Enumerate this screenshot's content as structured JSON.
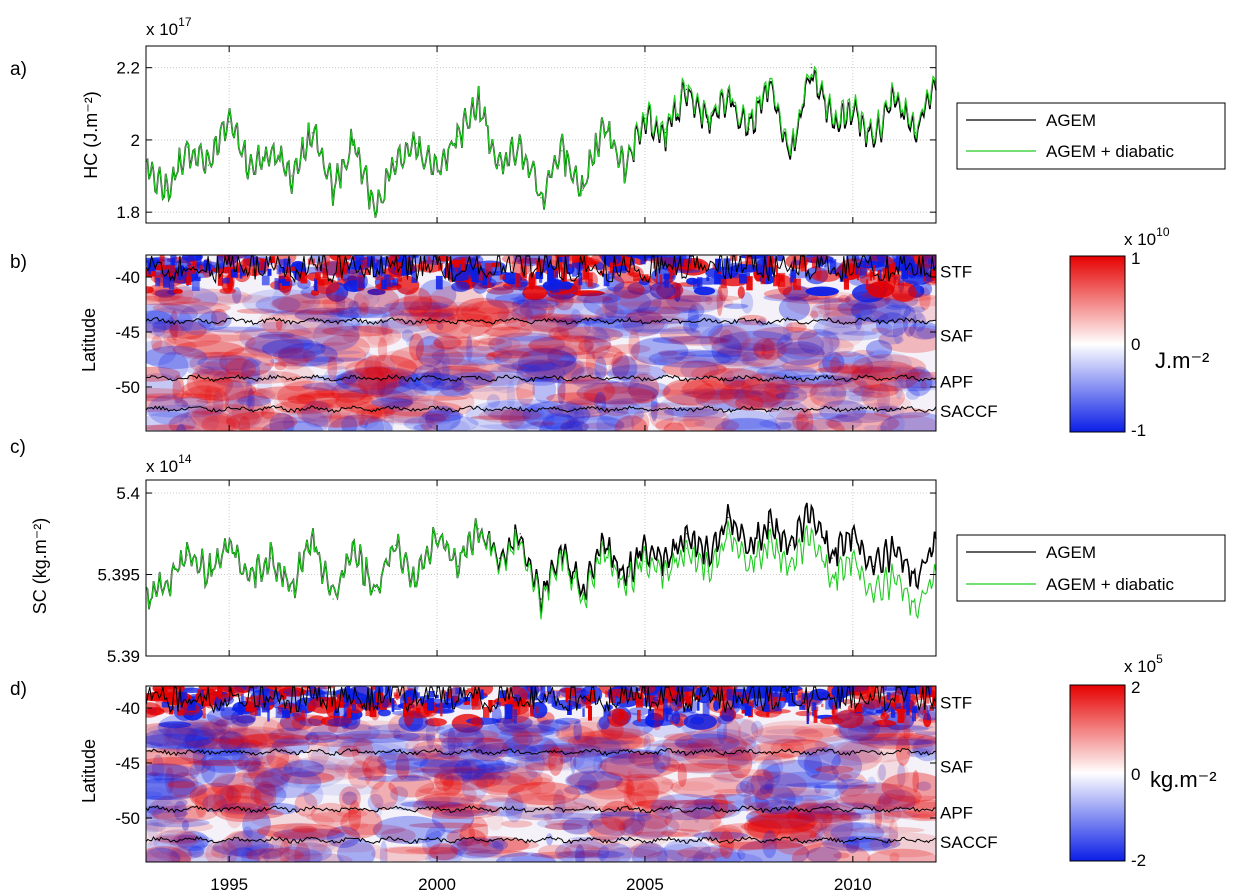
{
  "chart_data": [
    {
      "type": "line",
      "panel_label": "a)",
      "ylabel": "HC (J.m⁻²)",
      "multiplier": "x 10",
      "multiplier_exp": "17",
      "xlim": [
        1993,
        2012
      ],
      "ylim": [
        1.77,
        2.26
      ],
      "yticks": [
        1.8,
        2.0,
        2.2
      ],
      "ytick_labels": [
        "1.8",
        "2",
        "2.2"
      ],
      "grid": true,
      "legend_position": "right",
      "legend": [
        "AGEM",
        "AGEM + diabatic"
      ],
      "series": [
        {
          "name": "AGEM",
          "color": "#000000",
          "values": [
            [
              1993,
              1.92
            ],
            [
              1993.5,
              1.86
            ],
            [
              1994,
              1.98
            ],
            [
              1994.5,
              1.93
            ],
            [
              1995,
              2.05
            ],
            [
              1995.5,
              1.92
            ],
            [
              1996,
              1.97
            ],
            [
              1996.5,
              1.9
            ],
            [
              1997,
              2.02
            ],
            [
              1997.5,
              1.86
            ],
            [
              1998,
              2.0
            ],
            [
              1998.5,
              1.8
            ],
            [
              1999,
              1.94
            ],
            [
              1999.5,
              1.99
            ],
            [
              2000,
              1.92
            ],
            [
              2000.5,
              2.01
            ],
            [
              2001,
              2.1
            ],
            [
              2001.5,
              1.93
            ],
            [
              2002,
              1.99
            ],
            [
              2002.5,
              1.84
            ],
            [
              2003,
              1.97
            ],
            [
              2003.5,
              1.86
            ],
            [
              2004,
              2.04
            ],
            [
              2004.5,
              1.92
            ],
            [
              2005,
              2.06
            ],
            [
              2005.5,
              2.02
            ],
            [
              2006,
              2.14
            ],
            [
              2006.5,
              2.05
            ],
            [
              2007,
              2.12
            ],
            [
              2007.5,
              2.03
            ],
            [
              2008,
              2.16
            ],
            [
              2008.5,
              1.95
            ],
            [
              2009,
              2.2
            ],
            [
              2009.5,
              2.05
            ],
            [
              2010,
              2.08
            ],
            [
              2010.5,
              2.0
            ],
            [
              2011,
              2.12
            ],
            [
              2011.5,
              2.02
            ],
            [
              2012,
              2.16
            ]
          ]
        },
        {
          "name": "AGEM + diabatic",
          "color": "#22cc22",
          "values": [
            [
              1993,
              1.92
            ],
            [
              1993.5,
              1.86
            ],
            [
              1994,
              1.98
            ],
            [
              1994.5,
              1.93
            ],
            [
              1995,
              2.05
            ],
            [
              1995.5,
              1.92
            ],
            [
              1996,
              1.97
            ],
            [
              1996.5,
              1.9
            ],
            [
              1997,
              2.02
            ],
            [
              1997.5,
              1.86
            ],
            [
              1998,
              2.0
            ],
            [
              1998.5,
              1.8
            ],
            [
              1999,
              1.94
            ],
            [
              1999.5,
              1.99
            ],
            [
              2000,
              1.92
            ],
            [
              2000.5,
              2.01
            ],
            [
              2001,
              2.1
            ],
            [
              2001.5,
              1.93
            ],
            [
              2002,
              1.99
            ],
            [
              2002.5,
              1.84
            ],
            [
              2003,
              1.97
            ],
            [
              2003.5,
              1.86
            ],
            [
              2004,
              2.04
            ],
            [
              2004.5,
              1.92
            ],
            [
              2005,
              2.07
            ],
            [
              2005.5,
              2.03
            ],
            [
              2006,
              2.15
            ],
            [
              2006.5,
              2.06
            ],
            [
              2007,
              2.13
            ],
            [
              2007.5,
              2.04
            ],
            [
              2008,
              2.17
            ],
            [
              2008.5,
              1.96
            ],
            [
              2009,
              2.21
            ],
            [
              2009.5,
              2.06
            ],
            [
              2010,
              2.09
            ],
            [
              2010.5,
              2.01
            ],
            [
              2011,
              2.13
            ],
            [
              2011.5,
              2.03
            ],
            [
              2012,
              2.17
            ]
          ]
        }
      ]
    },
    {
      "type": "heatmap",
      "panel_label": "b)",
      "ylabel": "Latitude",
      "xlim": [
        1993,
        2012
      ],
      "ylim": [
        -54,
        -38
      ],
      "yticks": [
        -40,
        -45,
        -50
      ],
      "ytick_labels": [
        "-40",
        "-45",
        "-50"
      ],
      "colorbar": {
        "multiplier": "x 10",
        "multiplier_exp": "10",
        "ticks": [
          "1",
          "0",
          "-1"
        ],
        "label": "J.m⁻²",
        "range": [
          -1,
          1
        ]
      },
      "fronts": [
        {
          "name": "STF",
          "lat": -39.5
        },
        {
          "name": "SAF",
          "lat": -44.0
        },
        {
          "name": "APF",
          "lat": -49.2
        },
        {
          "name": "SACCF",
          "lat": -52.0
        }
      ],
      "front_tick_lat": {
        "STF": -39.5,
        "SAF": -45.3,
        "APF": -49.5,
        "SACCF": -52.2
      }
    },
    {
      "type": "line",
      "panel_label": "c)",
      "ylabel": "SC (kg.m⁻²)",
      "multiplier": "x 10",
      "multiplier_exp": "14",
      "xlim": [
        1993,
        2012
      ],
      "ylim": [
        5.39,
        5.4008
      ],
      "yticks": [
        5.39,
        5.395,
        5.4
      ],
      "ytick_labels": [
        "5.39",
        "5.395",
        "5.4"
      ],
      "grid": true,
      "legend_position": "right",
      "legend": [
        "AGEM",
        "AGEM + diabatic"
      ],
      "series": [
        {
          "name": "AGEM",
          "color": "#000000",
          "values": [
            [
              1993,
              5.3935
            ],
            [
              1993.5,
              5.3945
            ],
            [
              1994,
              5.3962
            ],
            [
              1994.5,
              5.3952
            ],
            [
              1995,
              5.397
            ],
            [
              1995.5,
              5.3948
            ],
            [
              1996,
              5.396
            ],
            [
              1996.5,
              5.394
            ],
            [
              1997,
              5.3975
            ],
            [
              1997.5,
              5.3935
            ],
            [
              1998,
              5.3965
            ],
            [
              1998.5,
              5.394
            ],
            [
              1999,
              5.3968
            ],
            [
              1999.5,
              5.3945
            ],
            [
              2000,
              5.3975
            ],
            [
              2000.5,
              5.3955
            ],
            [
              2001,
              5.3978
            ],
            [
              2001.5,
              5.396
            ],
            [
              2002,
              5.3975
            ],
            [
              2002.5,
              5.3935
            ],
            [
              2003,
              5.3965
            ],
            [
              2003.5,
              5.394
            ],
            [
              2004,
              5.397
            ],
            [
              2004.5,
              5.395
            ],
            [
              2005,
              5.3965
            ],
            [
              2005.5,
              5.3958
            ],
            [
              2006,
              5.3975
            ],
            [
              2006.5,
              5.3962
            ],
            [
              2007,
              5.3985
            ],
            [
              2007.5,
              5.3965
            ],
            [
              2008,
              5.3982
            ],
            [
              2008.5,
              5.3968
            ],
            [
              2009,
              5.399
            ],
            [
              2009.5,
              5.396
            ],
            [
              2010,
              5.3975
            ],
            [
              2010.5,
              5.3955
            ],
            [
              2011,
              5.3965
            ],
            [
              2011.5,
              5.3948
            ],
            [
              2012,
              5.397
            ]
          ]
        },
        {
          "name": "AGEM + diabatic",
          "color": "#22cc22",
          "values": [
            [
              1993,
              5.3935
            ],
            [
              1993.5,
              5.3945
            ],
            [
              1994,
              5.3962
            ],
            [
              1994.5,
              5.3952
            ],
            [
              1995,
              5.397
            ],
            [
              1995.5,
              5.3948
            ],
            [
              1996,
              5.396
            ],
            [
              1996.5,
              5.394
            ],
            [
              1997,
              5.3975
            ],
            [
              1997.5,
              5.3935
            ],
            [
              1998,
              5.3965
            ],
            [
              1998.5,
              5.394
            ],
            [
              1999,
              5.3968
            ],
            [
              1999.5,
              5.3945
            ],
            [
              2000,
              5.3975
            ],
            [
              2000.5,
              5.3955
            ],
            [
              2001,
              5.3978
            ],
            [
              2001.5,
              5.3958
            ],
            [
              2002,
              5.3972
            ],
            [
              2002.5,
              5.3932
            ],
            [
              2003,
              5.3962
            ],
            [
              2003.5,
              5.3935
            ],
            [
              2004,
              5.3965
            ],
            [
              2004.5,
              5.3944
            ],
            [
              2005,
              5.3958
            ],
            [
              2005.5,
              5.395
            ],
            [
              2006,
              5.3966
            ],
            [
              2006.5,
              5.3952
            ],
            [
              2007,
              5.3975
            ],
            [
              2007.5,
              5.3954
            ],
            [
              2008,
              5.397
            ],
            [
              2008.5,
              5.3955
            ],
            [
              2009,
              5.3976
            ],
            [
              2009.5,
              5.3945
            ],
            [
              2010,
              5.396
            ],
            [
              2010.5,
              5.3938
            ],
            [
              2011,
              5.3948
            ],
            [
              2011.5,
              5.393
            ],
            [
              2012,
              5.395
            ]
          ]
        }
      ]
    },
    {
      "type": "heatmap",
      "panel_label": "d)",
      "ylabel": "Latitude",
      "xlim": [
        1993,
        2012
      ],
      "ylim": [
        -54,
        -38
      ],
      "yticks": [
        -40,
        -45,
        -50
      ],
      "ytick_labels": [
        "-40",
        "-45",
        "-50"
      ],
      "xticks": [
        1995,
        2000,
        2005,
        2010
      ],
      "xtick_labels": [
        "1995",
        "2000",
        "2005",
        "2010"
      ],
      "colorbar": {
        "multiplier": "x 10",
        "multiplier_exp": "5",
        "ticks": [
          "2",
          "0",
          "-2"
        ],
        "label": "kg.m⁻²",
        "range": [
          -2,
          2
        ]
      },
      "fronts": [
        {
          "name": "STF",
          "lat": -39.5
        },
        {
          "name": "SAF",
          "lat": -44.0
        },
        {
          "name": "APF",
          "lat": -49.2
        },
        {
          "name": "SACCF",
          "lat": -52.0
        }
      ],
      "front_tick_lat": {
        "STF": -39.5,
        "SAF": -45.3,
        "APF": -49.5,
        "SACCF": -52.2
      }
    }
  ],
  "colors": {
    "agem": "#000000",
    "diabatic": "#22cc22",
    "positive": "#e60000",
    "negative": "#0a1ee6",
    "neutral": "#ffffff",
    "grid": "#bfbfbf"
  }
}
